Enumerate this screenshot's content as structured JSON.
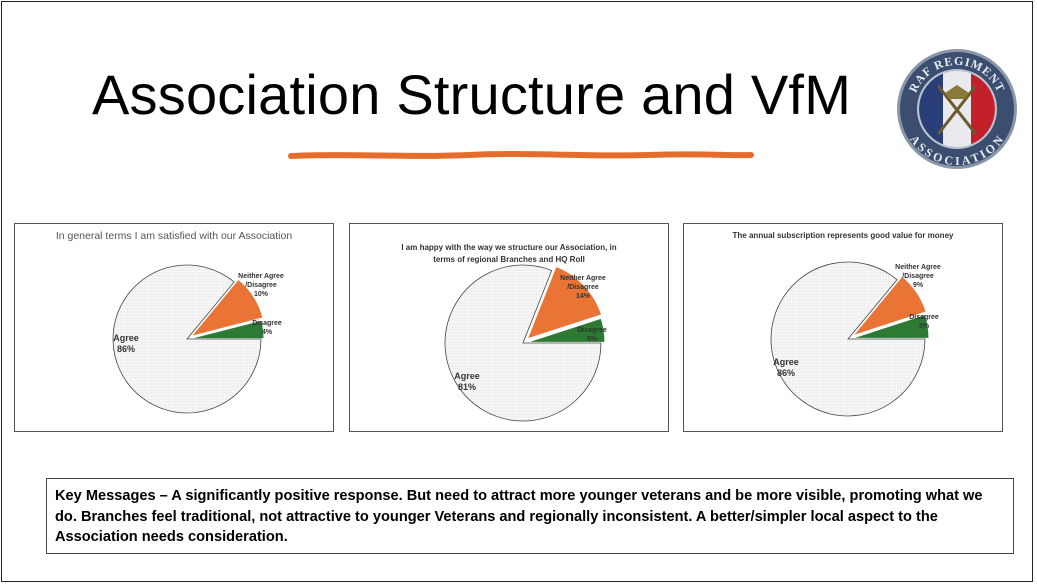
{
  "slide": {
    "title": "Association Structure and VfM",
    "accent_color": "#e46c2c",
    "logo": {
      "name": "RAF Regiment Association badge",
      "top_text": "RAF REGIMENT",
      "bottom_text": "ASSOCIATION"
    },
    "key_messages": "Key Messages – A significantly positive response. But need to attract more younger veterans and be more visible, promoting what we do. Branches feel traditional, not attractive to younger Veterans and regionally inconsistent. A better/simpler local aspect to the Association needs consideration."
  },
  "chart_data": [
    {
      "type": "pie",
      "title": "In general terms I am satisfied with our Association",
      "slices": [
        {
          "label": "Agree",
          "value": 86,
          "display": "86%",
          "color": "#f4f4f4",
          "exploded": false
        },
        {
          "label": "Neither Agree /Disagree",
          "label_lines": [
            "Neither Agree",
            "/Disagree"
          ],
          "value": 10,
          "display": "10%",
          "color": "#ea7435",
          "exploded": true
        },
        {
          "label": "Disagree",
          "value": 4,
          "display": "4%",
          "color": "#2d7a33",
          "exploded": true
        }
      ]
    },
    {
      "type": "pie",
      "title": "I am happy with the way we structure our Association, in terms of regional Branches and HQ Roll",
      "title_lines": [
        "I am happy with the way we structure our Association, in",
        "terms of regional Branches and HQ Roll"
      ],
      "slices": [
        {
          "label": "Agree",
          "value": 81,
          "display": "81%",
          "color": "#f4f4f4",
          "exploded": false
        },
        {
          "label": "Neither Agree /Disagree",
          "label_lines": [
            "Neither Agree",
            "/Disagree"
          ],
          "value": 14,
          "display": "14%",
          "color": "#ea7435",
          "exploded": true
        },
        {
          "label": "Disagree",
          "value": 5,
          "display": "5%",
          "color": "#2d7a33",
          "exploded": true
        }
      ]
    },
    {
      "type": "pie",
      "title": "The annual subscription represents good value for money",
      "slices": [
        {
          "label": "Agree",
          "value": 86,
          "display": "86%",
          "color": "#f4f4f4",
          "exploded": false
        },
        {
          "label": "Neither Agree /Disagree",
          "label_lines": [
            "Neither Agree",
            "/Disagree"
          ],
          "value": 9,
          "display": "9%",
          "color": "#ea7435",
          "exploded": true
        },
        {
          "label": "Disagree",
          "value": 5,
          "display": "5%",
          "color": "#2d7a33",
          "exploded": true
        }
      ]
    }
  ]
}
